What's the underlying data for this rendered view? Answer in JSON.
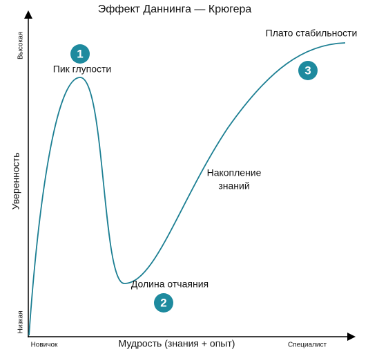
{
  "title": "Эффект Даннинга — Крюгера",
  "y_axis": {
    "label": "Уверенность",
    "high": "Высокая",
    "low": "Низкая"
  },
  "x_axis": {
    "label": "Мудрость (знания + опыт)",
    "start": "Новичок",
    "end": "Специалист"
  },
  "stages": [
    {
      "number": "1",
      "label": [
        "Пик глупости"
      ]
    },
    {
      "number": "2",
      "label": [
        "Долина отчаяния"
      ]
    },
    {
      "number": "3",
      "label": [
        "Плато стабильности"
      ]
    }
  ],
  "annotation": [
    "Накопление",
    "знаний"
  ]
}
